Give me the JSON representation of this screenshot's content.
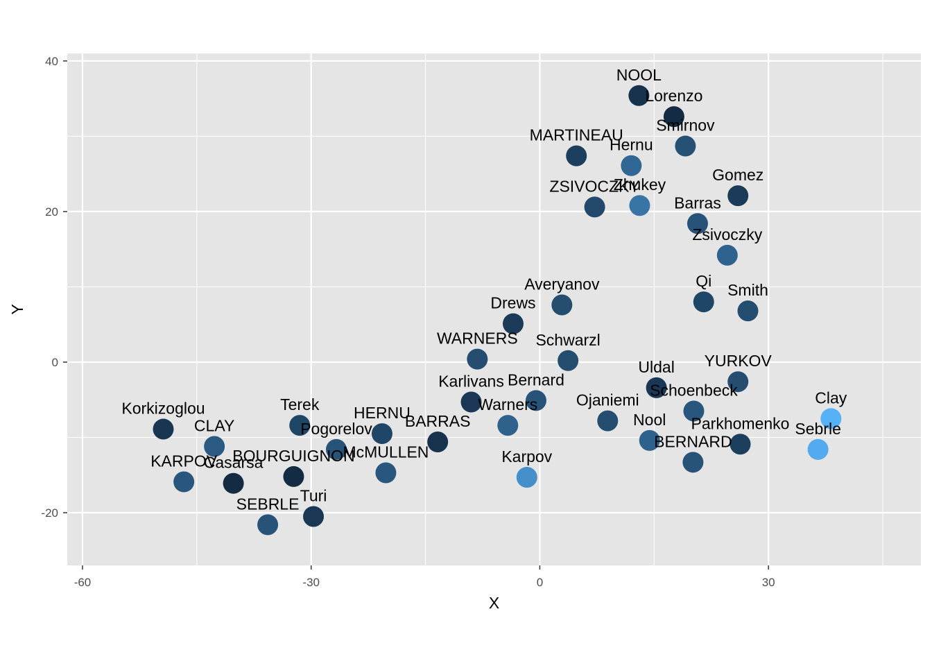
{
  "chart_data": {
    "type": "scatter",
    "xlabel": "X",
    "ylabel": "Y",
    "xlim": [
      -62,
      50
    ],
    "ylim": [
      -27,
      41
    ],
    "x_ticks": [
      -60,
      -30,
      0,
      30
    ],
    "y_ticks": [
      -20,
      0,
      20,
      40
    ],
    "grid": true,
    "legend": "none",
    "colors": {
      "panel_background": "#e5e5e5",
      "grid": "#ffffff",
      "dark_point": "#132b43",
      "light_point": "#56b1f7"
    },
    "points": [
      {
        "label": "NOOL",
        "x": 13.0,
        "y": 35.4,
        "shade": 0.05
      },
      {
        "label": "Lorenzo",
        "x": 17.6,
        "y": 32.6,
        "shade": 0.0
      },
      {
        "label": "MARTINEAU",
        "x": 4.8,
        "y": 27.4,
        "shade": 0.15
      },
      {
        "label": "Smirnov",
        "x": 19.1,
        "y": 28.7,
        "shade": 0.28
      },
      {
        "label": "Hernu",
        "x": 12.0,
        "y": 26.1,
        "shade": 0.45
      },
      {
        "label": "ZSIVOCZKY",
        "x": 7.2,
        "y": 20.6,
        "shade": 0.22
      },
      {
        "label": "Zhukey",
        "x": 13.1,
        "y": 20.8,
        "shade": 0.55
      },
      {
        "label": "Gomez",
        "x": 26.0,
        "y": 22.1,
        "shade": 0.12
      },
      {
        "label": "Barras",
        "x": 20.7,
        "y": 18.4,
        "shade": 0.3
      },
      {
        "label": "Zsivoczky",
        "x": 24.6,
        "y": 14.2,
        "shade": 0.42
      },
      {
        "label": "Averyanov",
        "x": 2.9,
        "y": 7.6,
        "shade": 0.25
      },
      {
        "label": "Qi",
        "x": 21.5,
        "y": 8.0,
        "shade": 0.2
      },
      {
        "label": "Smith",
        "x": 27.3,
        "y": 6.8,
        "shade": 0.25
      },
      {
        "label": "Drews",
        "x": -3.5,
        "y": 5.1,
        "shade": 0.12
      },
      {
        "label": "WARNERS",
        "x": -8.2,
        "y": 0.4,
        "shade": 0.25
      },
      {
        "label": "Schwarzl",
        "x": 3.7,
        "y": 0.2,
        "shade": 0.25
      },
      {
        "label": "Uldal",
        "x": 15.3,
        "y": -3.4,
        "shade": 0.1
      },
      {
        "label": "YURKOV",
        "x": 26.0,
        "y": -2.6,
        "shade": 0.25
      },
      {
        "label": "Karlivans",
        "x": -9.0,
        "y": -5.3,
        "shade": 0.1
      },
      {
        "label": "Bernard",
        "x": -0.5,
        "y": -5.1,
        "shade": 0.3
      },
      {
        "label": "Ojaniemi",
        "x": 8.9,
        "y": -7.8,
        "shade": 0.25
      },
      {
        "label": "Schoenbeck",
        "x": 20.2,
        "y": -6.5,
        "shade": 0.32
      },
      {
        "label": "Clay",
        "x": 38.2,
        "y": -7.5,
        "shade": 1.0
      },
      {
        "label": "Warners",
        "x": -4.2,
        "y": -8.4,
        "shade": 0.4
      },
      {
        "label": "Nool",
        "x": 14.4,
        "y": -10.4,
        "shade": 0.4
      },
      {
        "label": "Parkhomenko",
        "x": 26.3,
        "y": -10.9,
        "shade": 0.15
      },
      {
        "label": "Sebrle",
        "x": 36.5,
        "y": -11.6,
        "shade": 0.95
      },
      {
        "label": "BERNARD",
        "x": 20.1,
        "y": -13.3,
        "shade": 0.3
      },
      {
        "label": "Karpov",
        "x": -1.7,
        "y": -15.3,
        "shade": 0.75
      },
      {
        "label": "Korkizoglou",
        "x": -49.4,
        "y": -8.9,
        "shade": 0.08
      },
      {
        "label": "CLAY",
        "x": -42.7,
        "y": -11.2,
        "shade": 0.35
      },
      {
        "label": "Terek",
        "x": -31.5,
        "y": -8.4,
        "shade": 0.2
      },
      {
        "label": "Pogorelov",
        "x": -26.7,
        "y": -11.6,
        "shade": 0.3
      },
      {
        "label": "HERNU",
        "x": -20.7,
        "y": -9.5,
        "shade": 0.2
      },
      {
        "label": "BARRAS",
        "x": -13.4,
        "y": -10.6,
        "shade": 0.05
      },
      {
        "label": "McMULLEN",
        "x": -20.2,
        "y": -14.7,
        "shade": 0.32
      },
      {
        "label": "BOURGUIGNON",
        "x": -32.3,
        "y": -15.2,
        "shade": 0.0
      },
      {
        "label": "Casarsa",
        "x": -40.2,
        "y": -16.1,
        "shade": 0.0
      },
      {
        "label": "KARPOV",
        "x": -46.7,
        "y": -15.9,
        "shade": 0.32
      },
      {
        "label": "SEBRLE",
        "x": -35.7,
        "y": -21.6,
        "shade": 0.3
      },
      {
        "label": "Turi",
        "x": -29.7,
        "y": -20.5,
        "shade": 0.1
      }
    ]
  }
}
